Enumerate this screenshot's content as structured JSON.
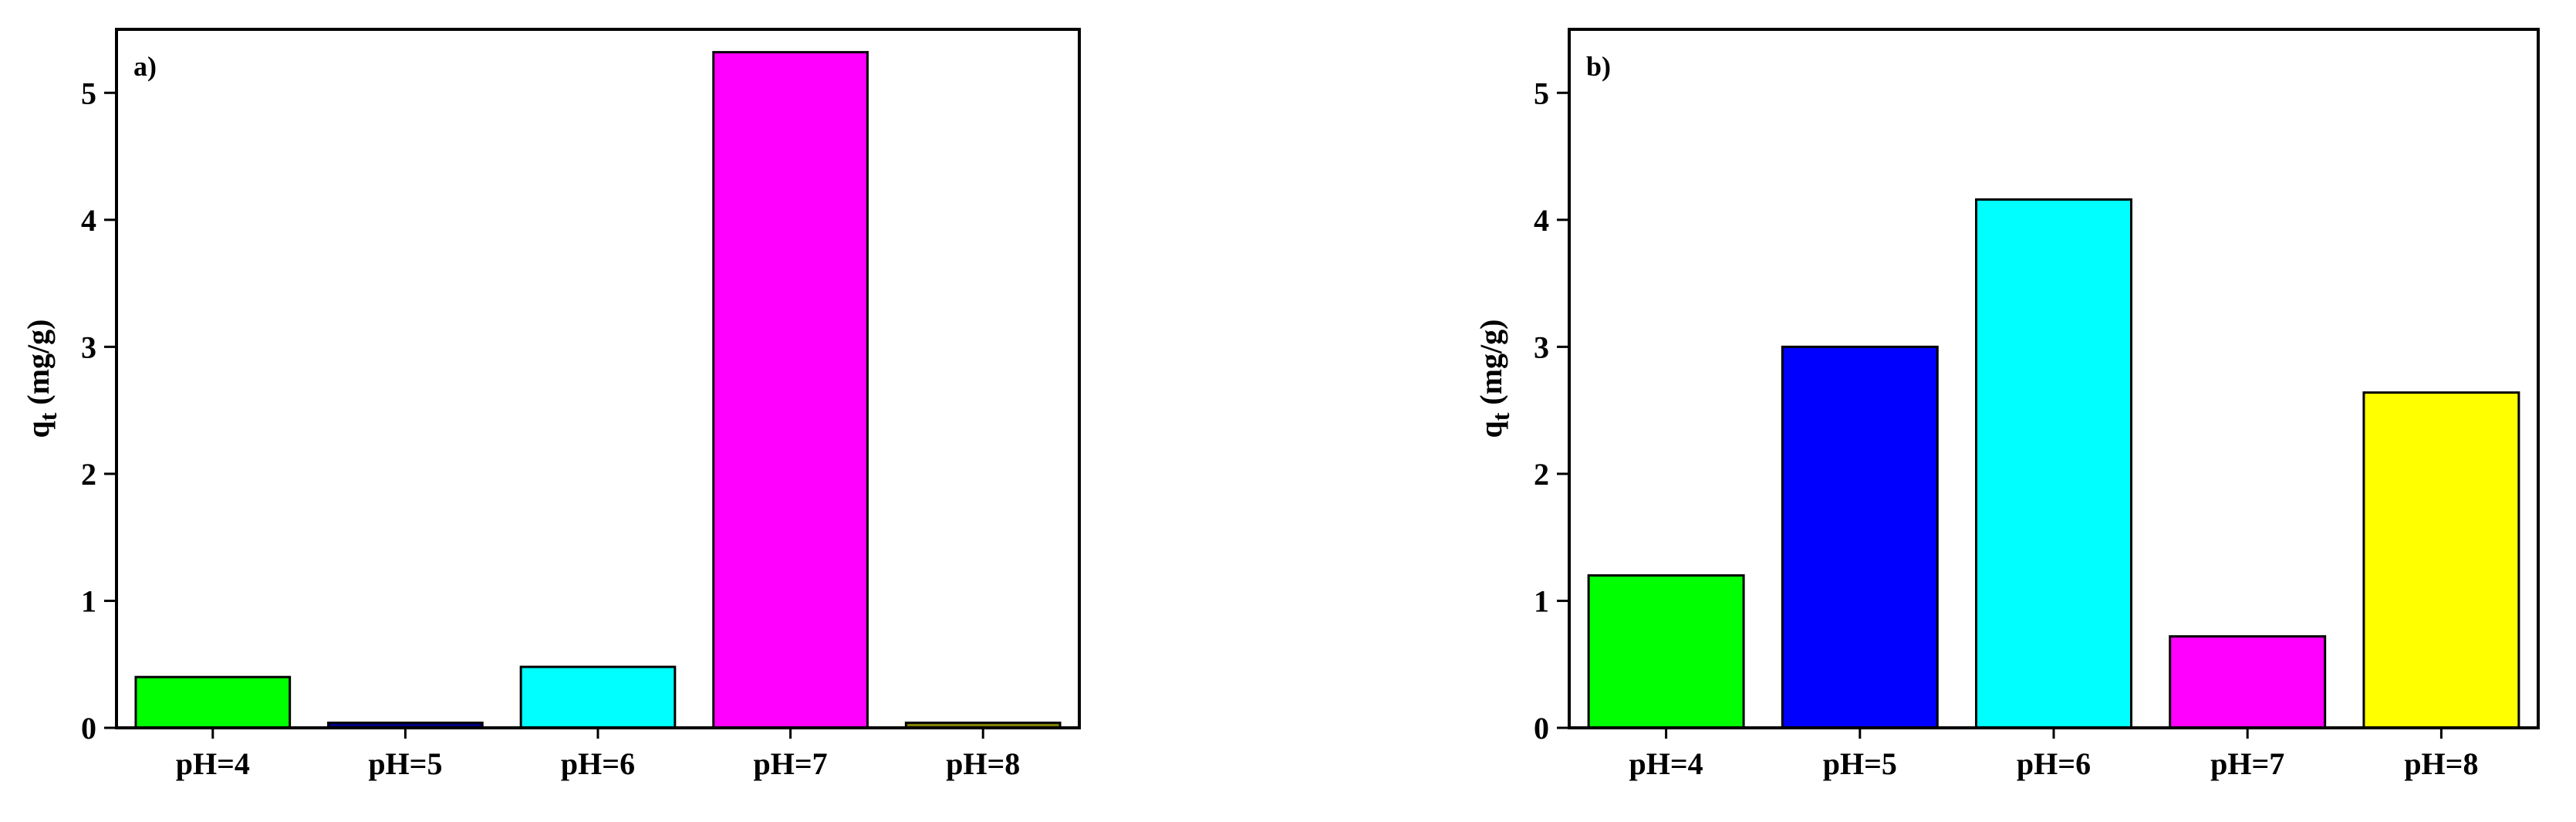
{
  "chart_data": [
    {
      "type": "bar",
      "title": "a)",
      "ylabel": "q",
      "ylabel_sub": "t",
      "ylabel_unit": "(mg/g)",
      "categories": [
        "pH=4",
        "pH=5",
        "pH=6",
        "pH=7",
        "pH=8"
      ],
      "values": [
        0.4,
        0.04,
        0.48,
        5.32,
        0.04
      ],
      "colors": [
        "#00ff00",
        "#000080",
        "#00ffff",
        "#ff00ff",
        "#808000"
      ],
      "ylim": [
        0,
        5.5
      ],
      "yticks": [
        0,
        1,
        2,
        3,
        4,
        5
      ]
    },
    {
      "type": "bar",
      "title": "b)",
      "ylabel": "q",
      "ylabel_sub": "t",
      "ylabel_unit": "(mg/g)",
      "categories": [
        "pH=4",
        "pH=5",
        "pH=6",
        "pH=7",
        "pH=8"
      ],
      "values": [
        1.2,
        3.0,
        4.16,
        0.72,
        2.64
      ],
      "colors": [
        "#00ff00",
        "#0000ff",
        "#00ffff",
        "#ff00ff",
        "#ffff00"
      ],
      "ylim": [
        0,
        5.5
      ],
      "yticks": [
        0,
        1,
        2,
        3,
        4,
        5
      ]
    }
  ]
}
